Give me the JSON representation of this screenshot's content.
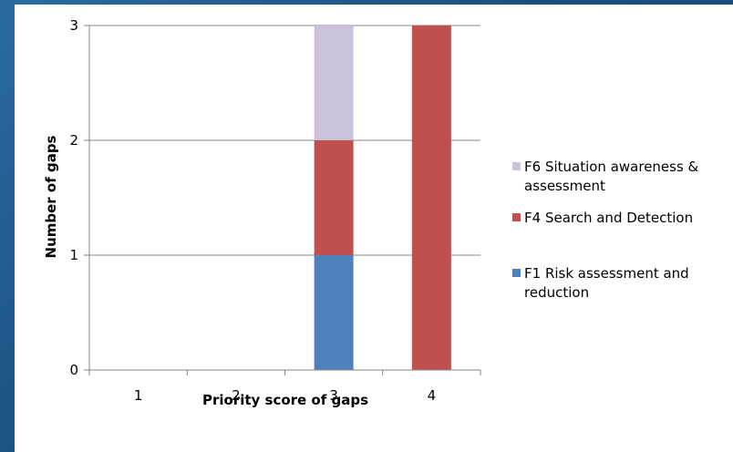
{
  "chart_data": {
    "type": "bar",
    "stacked": true,
    "title": "",
    "xlabel": "Priority score of gaps",
    "ylabel": "Number of gaps",
    "categories": [
      "1",
      "2",
      "3",
      "4"
    ],
    "ylim": [
      0,
      3
    ],
    "yticks": [
      "0",
      "1",
      "2",
      "3"
    ],
    "grid": true,
    "legend_position": "right",
    "series": [
      {
        "name": "F1 Risk assessment and reduction",
        "values": [
          0,
          0,
          1,
          0
        ],
        "color": "#4f81bd",
        "legend_lines": [
          "F1 Risk assessment and",
          "reduction"
        ]
      },
      {
        "name": "F4 Search and Detection",
        "values": [
          0,
          0,
          1,
          3
        ],
        "color": "#c0504d",
        "legend_lines": [
          "F4 Search and Detection"
        ]
      },
      {
        "name": "F6 Situation awareness & assessment",
        "values": [
          0,
          0,
          1,
          0
        ],
        "color": "#ccc1da",
        "legend_lines": [
          "F6 Situation awareness &",
          "assessment"
        ]
      }
    ]
  }
}
